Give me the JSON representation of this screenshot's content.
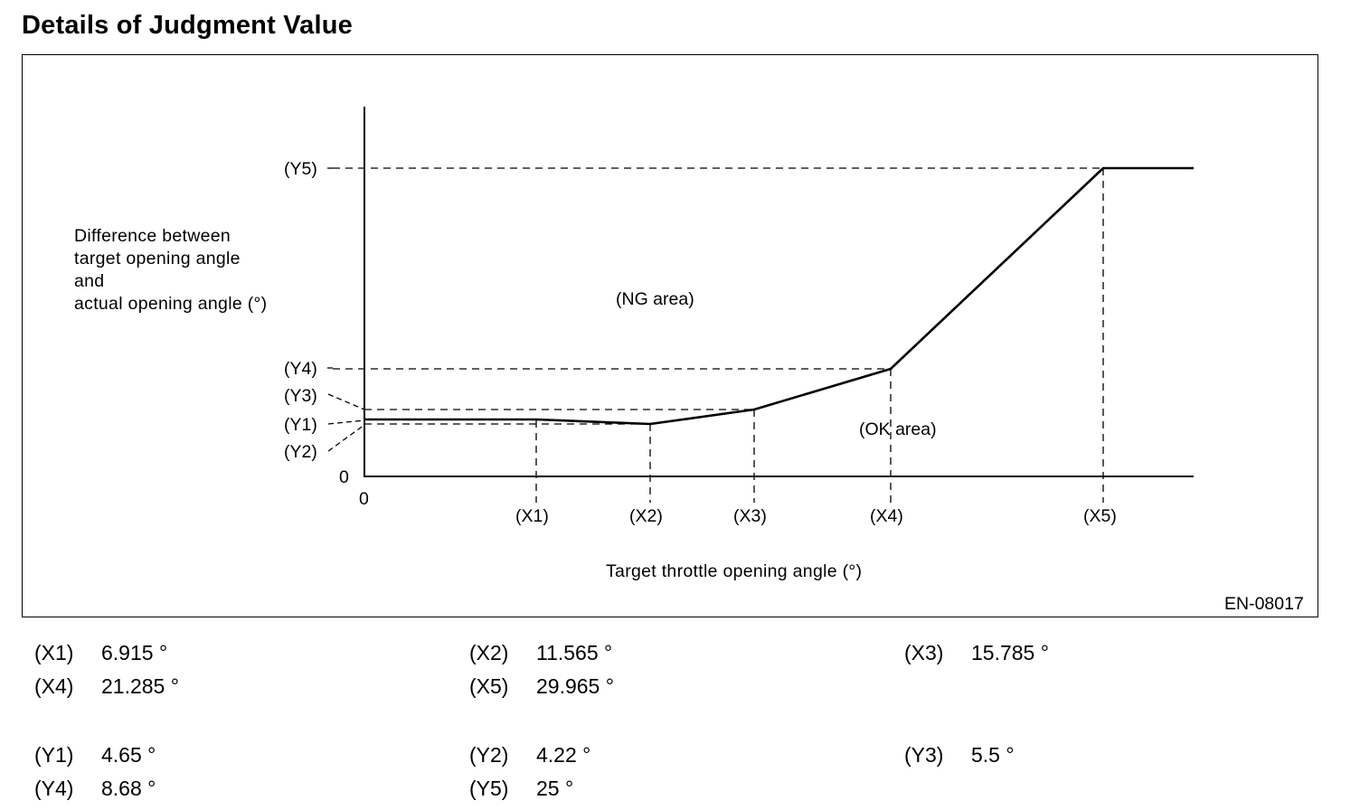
{
  "title": "Details of Judgment Value",
  "figure_code": "EN-08017",
  "y_axis_label": [
    "Difference between",
    "target opening angle",
    "and",
    "actual opening angle (°)"
  ],
  "x_axis_label": "Target throttle opening angle (°)",
  "regions": {
    "ng": "(NG area)",
    "ok": "(OK area)"
  },
  "zero": "0",
  "x_markers": [
    "(X1)",
    "(X2)",
    "(X3)",
    "(X4)",
    "(X5)"
  ],
  "y_markers": [
    "(Y5)",
    "(Y4)",
    "(Y3)",
    "(Y1)",
    "(Y2)"
  ],
  "x_values": [
    {
      "key": "(X1)",
      "value": "6.915 °"
    },
    {
      "key": "(X2)",
      "value": "11.565 °"
    },
    {
      "key": "(X3)",
      "value": "15.785 °"
    },
    {
      "key": "(X4)",
      "value": "21.285 °"
    },
    {
      "key": "(X5)",
      "value": "29.965 °"
    }
  ],
  "y_values": [
    {
      "key": "(Y1)",
      "value": "4.65 °"
    },
    {
      "key": "(Y2)",
      "value": "4.22 °"
    },
    {
      "key": "(Y3)",
      "value": "5.5 °"
    },
    {
      "key": "(Y4)",
      "value": "8.68 °"
    },
    {
      "key": "(Y5)",
      "value": "25 °"
    }
  ]
}
